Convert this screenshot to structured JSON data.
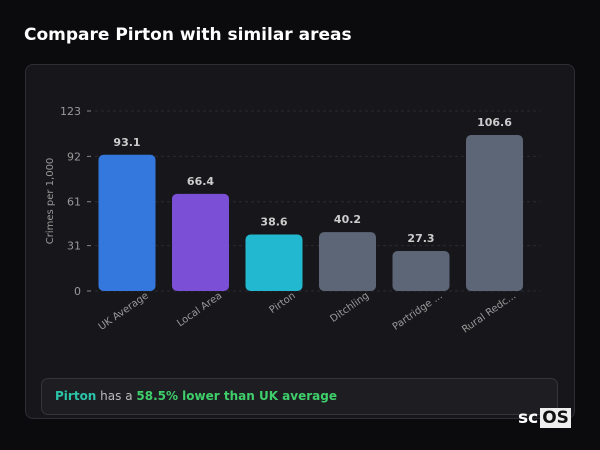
{
  "title": "Compare Pirton with similar areas",
  "chart_data": {
    "type": "bar",
    "ylabel": "Crimes per 1,000",
    "ylim": [
      0,
      123
    ],
    "yticks": [
      0,
      31,
      61,
      92,
      123
    ],
    "grid": true,
    "categories": [
      "UK Average",
      "Local Area",
      "Pirton",
      "Ditchling",
      "Partridge ...",
      "Rural Redc..."
    ],
    "values": [
      93.1,
      66.4,
      38.6,
      40.2,
      27.3,
      106.6
    ],
    "value_labels": [
      "93.1",
      "66.4",
      "38.6",
      "40.2",
      "27.3",
      "106.6"
    ],
    "colors": [
      "#3578dd",
      "#7b4fd6",
      "#22b8cf",
      "#5c6677",
      "#5c6677",
      "#5c6677"
    ]
  },
  "summary": {
    "area": "Pirton",
    "middle": " has a ",
    "comparison": "58.5% lower than UK average"
  },
  "logo": {
    "prefix": "sc",
    "box": "OS"
  }
}
